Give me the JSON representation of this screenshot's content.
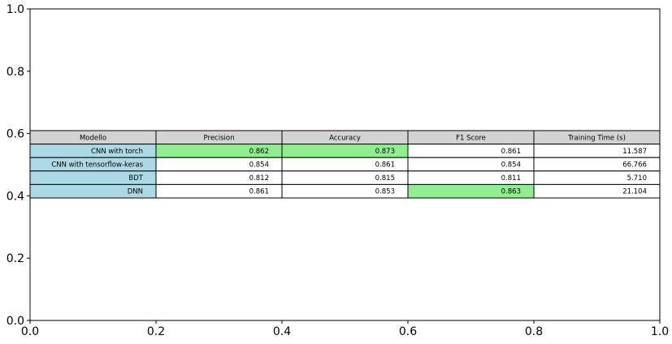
{
  "chart_data": {
    "type": "table",
    "title": "",
    "xlabel": "",
    "ylabel": "",
    "xlim": [
      0,
      1
    ],
    "ylim": [
      0,
      1
    ],
    "xticks": [
      "0.0",
      "0.2",
      "0.4",
      "0.6",
      "0.8",
      "1.0"
    ],
    "yticks": [
      "0.0",
      "0.2",
      "0.4",
      "0.6",
      "0.8",
      "1.0"
    ],
    "grid": false,
    "colors": {
      "header": "#d3d3d3",
      "row_label": "#add8e6",
      "highlight": "#90ee90",
      "cell": "#ffffff"
    },
    "columns": [
      "Modello",
      "Precision",
      "Accuracy",
      "F1 Score",
      "Training Time (s)"
    ],
    "rows": [
      {
        "cells": [
          "CNN with torch",
          "0.862",
          "0.873",
          "0.861",
          "11.587"
        ],
        "highlight": [
          1,
          2
        ]
      },
      {
        "cells": [
          "CNN with tensorflow-keras",
          "0.854",
          "0.861",
          "0.854",
          "66.766"
        ],
        "highlight": []
      },
      {
        "cells": [
          "BDT",
          "0.812",
          "0.815",
          "0.811",
          "5.710"
        ],
        "highlight": []
      },
      {
        "cells": [
          "DNN",
          "0.861",
          "0.853",
          "0.863",
          "21.104"
        ],
        "highlight": [
          3
        ]
      }
    ]
  }
}
